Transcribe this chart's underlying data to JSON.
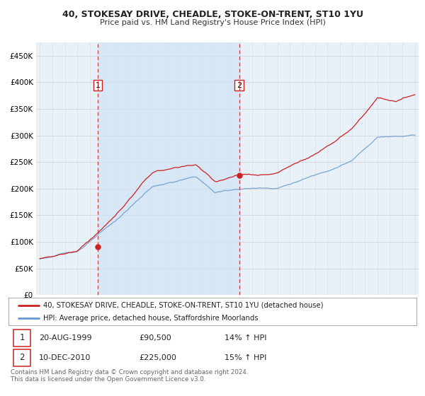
{
  "title": "40, STOKESAY DRIVE, CHEADLE, STOKE-ON-TRENT, ST10 1YU",
  "subtitle": "Price paid vs. HM Land Registry's House Price Index (HPI)",
  "background_color": "#ffffff",
  "plot_bg_color": "#e8f0f8",
  "red_line_color": "#cc2222",
  "blue_line_color": "#6699cc",
  "vline_color": "#cc2222",
  "purchase1_date_num": 1999.64,
  "purchase1_price": 90500,
  "purchase2_date_num": 2010.94,
  "purchase2_price": 225000,
  "legend_label_red": "40, STOKESAY DRIVE, CHEADLE, STOKE-ON-TRENT, ST10 1YU (detached house)",
  "legend_label_blue": "HPI: Average price, detached house, Staffordshire Moorlands",
  "table_row1": [
    "1",
    "20-AUG-1999",
    "£90,500",
    "14% ↑ HPI"
  ],
  "table_row2": [
    "2",
    "10-DEC-2010",
    "£225,000",
    "15% ↑ HPI"
  ],
  "footnote1": "Contains HM Land Registry data © Crown copyright and database right 2024.",
  "footnote2": "This data is licensed under the Open Government Licence v3.0.",
  "ylim": [
    0,
    475000
  ],
  "xlim_left": 1994.7,
  "xlim_right": 2025.3,
  "grid_color": "#cccccc",
  "spine_color": "#aaaaaa"
}
